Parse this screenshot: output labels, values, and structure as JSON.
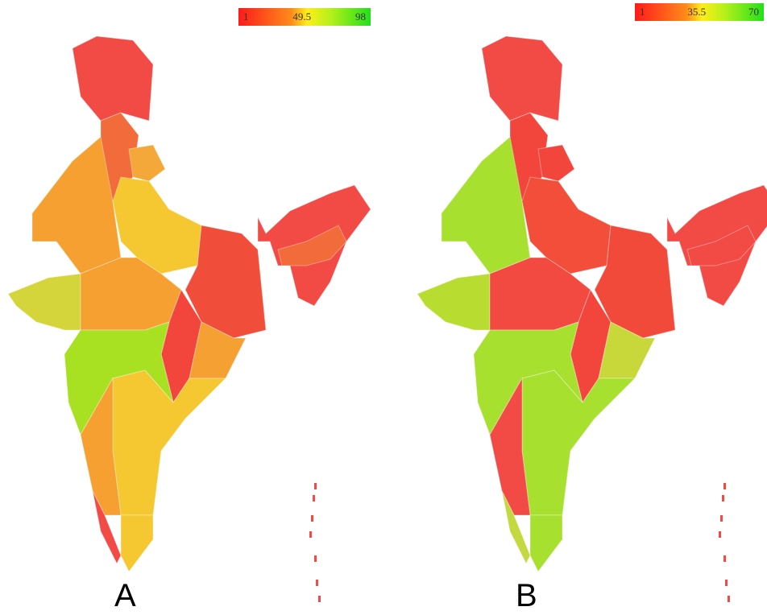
{
  "maps": [
    {
      "label": "A",
      "legend": {
        "min": "1",
        "mid": "49.5",
        "max": "98"
      },
      "region_colors": [
        "#f24a45",
        "#f26b3a",
        "#f5a83a",
        "#f5a030",
        "#f5c832",
        "#d4d53a",
        "#f5a030",
        "#f04e3a",
        "#f2463c",
        "#f5a033",
        "#a8e022",
        "#f5c832",
        "#f5a030",
        "#f24a45",
        "#f5c832",
        "#f24a45",
        "#f26b3a"
      ]
    },
    {
      "label": "B",
      "legend": {
        "min": "1",
        "mid": "35.5",
        "max": "70"
      },
      "region_colors": [
        "#f24a45",
        "#f2463c",
        "#f2463c",
        "#a8e030",
        "#f24e3a",
        "#b9dc30",
        "#f24a40",
        "#f24a3a",
        "#f2463c",
        "#c8d83a",
        "#a8e030",
        "#a8e030",
        "#f24a45",
        "#c4d840",
        "#a8e030",
        "#f24a45",
        "#f24a45"
      ]
    }
  ]
}
